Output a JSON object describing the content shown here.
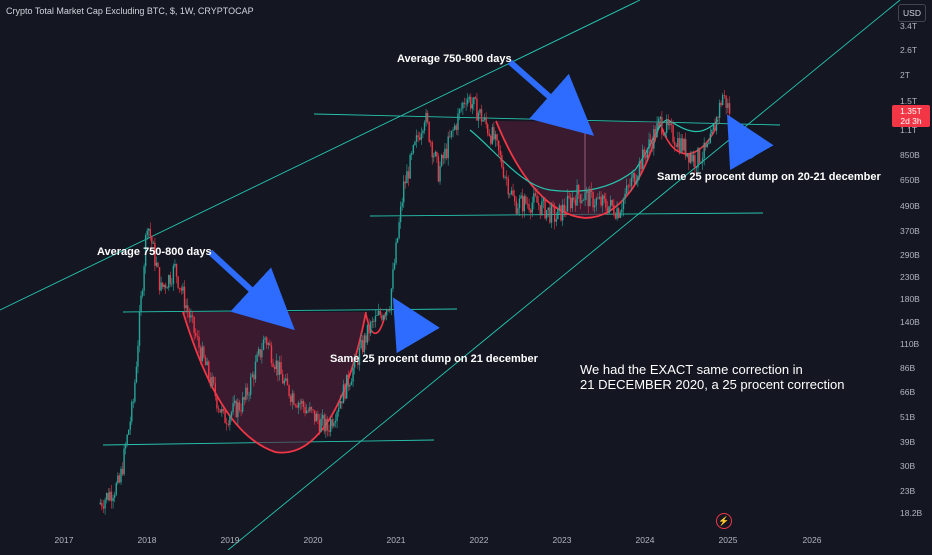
{
  "header": {
    "title": "Crypto Total Market Cap Excluding BTC, $, 1W, CRYPTOCAP",
    "currency": "USD"
  },
  "price_label": {
    "value": "1.35T",
    "countdown": "2d 3h"
  },
  "colors": {
    "background": "#141722",
    "up": "#26a69a",
    "down": "#f23645",
    "trendline": "#26c6b0",
    "cup_curve": "#f23645",
    "cup_fill": "#5a1e3a",
    "arrow": "#2e6bff",
    "text": "#ffffff",
    "axis_text": "#b2b5be"
  },
  "annotations": [
    {
      "id": "avg-left",
      "text": "Average 750-800 days"
    },
    {
      "id": "avg-right",
      "text": "Average 750-800 days"
    },
    {
      "id": "dump-left",
      "text": "Same 25 procent dump on 21 december"
    },
    {
      "id": "dump-right",
      "text": "Same 25 procent dump on 20-21 december"
    },
    {
      "id": "note-line-1",
      "text": "We had the EXACT same correction in"
    },
    {
      "id": "note-line-2",
      "text": "21 DECEMBER 2020, a 25 procent correction"
    }
  ],
  "chart_data": {
    "type": "candlestick",
    "title": "Crypto Total Market Cap Excluding BTC, $, 1W, CRYPTOCAP",
    "x_ticks": [
      "2017",
      "2018",
      "2019",
      "2020",
      "2021",
      "2022",
      "2023",
      "2024",
      "2025",
      "2026"
    ],
    "y_ticks": [
      "3.4T",
      "2.6T",
      "2T",
      "1.5T",
      "1.1T",
      "850B",
      "650B",
      "490B",
      "370B",
      "290B",
      "230B",
      "180B",
      "140B",
      "110B",
      "86B",
      "66B",
      "51B",
      "39B",
      "30B",
      "23B",
      "18.2B"
    ],
    "scale": "log",
    "last_value": "1.35T",
    "series": [
      {
        "values_approx": [
          [
            "2017-06",
            20
          ],
          [
            "2017-09",
            25
          ],
          [
            "2017-11",
            60
          ],
          [
            "2018-01",
            420
          ],
          [
            "2018-03",
            200
          ],
          [
            "2018-05",
            250
          ],
          [
            "2018-08",
            120
          ],
          [
            "2018-12",
            50
          ],
          [
            "2019-03",
            60
          ],
          [
            "2019-06",
            120
          ],
          [
            "2019-09",
            70
          ],
          [
            "2019-12",
            55
          ],
          [
            "2020-03",
            45
          ],
          [
            "2020-06",
            75
          ],
          [
            "2020-09",
            130
          ],
          [
            "2020-12",
            175
          ],
          [
            "2021-02",
            600
          ],
          [
            "2021-05",
            1300
          ],
          [
            "2021-07",
            700
          ],
          [
            "2021-11",
            1600
          ],
          [
            "2022-01",
            1300
          ],
          [
            "2022-03",
            1000
          ],
          [
            "2022-06",
            500
          ],
          [
            "2022-09",
            510
          ],
          [
            "2022-12",
            430
          ],
          [
            "2023-03",
            560
          ],
          [
            "2023-06",
            510
          ],
          [
            "2023-09",
            470
          ],
          [
            "2023-12",
            760
          ],
          [
            "2024-03",
            1200
          ],
          [
            "2024-06",
            950
          ],
          [
            "2024-08",
            800
          ],
          [
            "2024-10",
            900
          ],
          [
            "2024-12",
            1600
          ],
          [
            "2025-01",
            1350
          ]
        ]
      }
    ]
  }
}
